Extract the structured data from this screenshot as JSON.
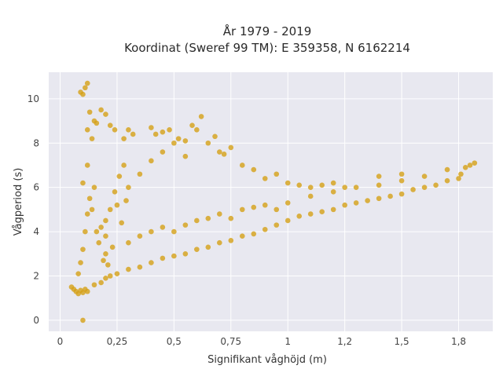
{
  "chart_data": {
    "type": "scatter",
    "title_line1": "År 1979 - 2019",
    "title_line2": "Koordinat (Sweref 99 TM): E 359358, N 6162214",
    "xlabel": "Signifikant våghöjd (m)",
    "ylabel": "Vågperiod (s)",
    "xlim": [
      -0.05,
      1.9
    ],
    "ylim": [
      -0.5,
      11.2
    ],
    "x_ticks": [
      {
        "value": 0,
        "label": "0"
      },
      {
        "value": 0.25,
        "label": "0,25"
      },
      {
        "value": 0.5,
        "label": "0,5"
      },
      {
        "value": 0.75,
        "label": "0,75"
      },
      {
        "value": 1,
        "label": "1"
      },
      {
        "value": 1.25,
        "label": "1,2"
      },
      {
        "value": 1.5,
        "label": "1,5"
      },
      {
        "value": 1.75,
        "label": "1,8"
      }
    ],
    "y_ticks": [
      {
        "value": 0,
        "label": "0"
      },
      {
        "value": 2,
        "label": "2"
      },
      {
        "value": 4,
        "label": "4"
      },
      {
        "value": 6,
        "label": "6"
      },
      {
        "value": 8,
        "label": "8"
      },
      {
        "value": 10,
        "label": "10"
      }
    ],
    "grid": true,
    "marker_color": "#D4A017",
    "background_color": "#E8E8F0",
    "points": [
      [
        0.05,
        1.5
      ],
      [
        0.06,
        1.4
      ],
      [
        0.07,
        1.3
      ],
      [
        0.08,
        1.2
      ],
      [
        0.09,
        1.35
      ],
      [
        0.1,
        1.25
      ],
      [
        0.11,
        1.4
      ],
      [
        0.12,
        1.3
      ],
      [
        0.08,
        2.1
      ],
      [
        0.09,
        2.6
      ],
      [
        0.1,
        3.2
      ],
      [
        0.11,
        4.0
      ],
      [
        0.12,
        4.8
      ],
      [
        0.13,
        5.5
      ],
      [
        0.1,
        6.2
      ],
      [
        0.12,
        7.0
      ],
      [
        0.1,
        10.2
      ],
      [
        0.11,
        10.5
      ],
      [
        0.12,
        10.7
      ],
      [
        0.09,
        10.3
      ],
      [
        0.13,
        9.4
      ],
      [
        0.12,
        8.6
      ],
      [
        0.15,
        9.0
      ],
      [
        0.14,
        8.2
      ],
      [
        0.1,
        0.0
      ],
      [
        0.15,
        1.6
      ],
      [
        0.18,
        1.7
      ],
      [
        0.2,
        1.9
      ],
      [
        0.22,
        2.0
      ],
      [
        0.25,
        2.1
      ],
      [
        0.3,
        2.3
      ],
      [
        0.35,
        2.4
      ],
      [
        0.4,
        2.6
      ],
      [
        0.45,
        2.8
      ],
      [
        0.5,
        2.9
      ],
      [
        0.55,
        3.0
      ],
      [
        0.6,
        3.2
      ],
      [
        0.65,
        3.3
      ],
      [
        0.7,
        3.5
      ],
      [
        0.75,
        3.6
      ],
      [
        0.8,
        3.8
      ],
      [
        0.85,
        3.9
      ],
      [
        0.9,
        4.1
      ],
      [
        0.95,
        4.3
      ],
      [
        1.0,
        4.5
      ],
      [
        1.05,
        4.7
      ],
      [
        1.1,
        4.8
      ],
      [
        1.15,
        4.9
      ],
      [
        1.2,
        5.0
      ],
      [
        1.25,
        5.2
      ],
      [
        1.3,
        5.3
      ],
      [
        1.35,
        5.4
      ],
      [
        1.4,
        5.5
      ],
      [
        1.45,
        5.6
      ],
      [
        1.5,
        5.7
      ],
      [
        1.55,
        5.9
      ],
      [
        1.6,
        6.0
      ],
      [
        1.65,
        6.1
      ],
      [
        1.7,
        6.3
      ],
      [
        1.75,
        6.4
      ],
      [
        1.8,
        7.0
      ],
      [
        1.78,
        6.9
      ],
      [
        1.82,
        7.1
      ],
      [
        1.76,
        6.6
      ],
      [
        0.2,
        4.5
      ],
      [
        0.25,
        5.2
      ],
      [
        0.3,
        6.0
      ],
      [
        0.35,
        6.6
      ],
      [
        0.4,
        7.2
      ],
      [
        0.45,
        7.6
      ],
      [
        0.5,
        8.0
      ],
      [
        0.55,
        7.4
      ],
      [
        0.6,
        8.6
      ],
      [
        0.62,
        9.2
      ],
      [
        0.58,
        8.8
      ],
      [
        0.65,
        8.0
      ],
      [
        0.7,
        7.6
      ],
      [
        0.75,
        7.8
      ],
      [
        0.8,
        7.0
      ],
      [
        0.85,
        6.8
      ],
      [
        0.9,
        6.4
      ],
      [
        0.95,
        6.6
      ],
      [
        1.0,
        6.2
      ],
      [
        1.05,
        6.1
      ],
      [
        1.1,
        6.0
      ],
      [
        1.15,
        6.1
      ],
      [
        1.2,
        6.2
      ],
      [
        1.25,
        6.0
      ],
      [
        0.3,
        8.6
      ],
      [
        0.28,
        8.2
      ],
      [
        0.32,
        8.4
      ],
      [
        0.22,
        8.8
      ],
      [
        0.18,
        9.5
      ],
      [
        0.2,
        9.3
      ],
      [
        0.16,
        8.9
      ],
      [
        0.24,
        8.6
      ],
      [
        0.4,
        8.7
      ],
      [
        0.42,
        8.4
      ],
      [
        0.45,
        8.5
      ],
      [
        0.48,
        8.6
      ],
      [
        0.52,
        8.2
      ],
      [
        0.55,
        8.1
      ],
      [
        0.68,
        8.3
      ],
      [
        0.72,
        7.5
      ],
      [
        0.3,
        3.5
      ],
      [
        0.35,
        3.8
      ],
      [
        0.4,
        4.0
      ],
      [
        0.45,
        4.2
      ],
      [
        0.5,
        4.0
      ],
      [
        0.55,
        4.3
      ],
      [
        0.6,
        4.5
      ],
      [
        0.65,
        4.6
      ],
      [
        0.7,
        4.8
      ],
      [
        0.75,
        4.6
      ],
      [
        0.8,
        5.0
      ],
      [
        0.85,
        5.1
      ],
      [
        0.9,
        5.2
      ],
      [
        0.95,
        5.0
      ],
      [
        1.0,
        5.3
      ],
      [
        1.1,
        5.6
      ],
      [
        1.2,
        5.8
      ],
      [
        1.3,
        6.0
      ],
      [
        1.4,
        6.1
      ],
      [
        1.5,
        6.3
      ],
      [
        1.6,
        6.5
      ],
      [
        1.7,
        6.8
      ],
      [
        1.5,
        6.6
      ],
      [
        1.4,
        6.5
      ],
      [
        0.2,
        3.0
      ],
      [
        0.2,
        3.8
      ],
      [
        0.18,
        4.2
      ],
      [
        0.22,
        5.0
      ],
      [
        0.24,
        5.8
      ],
      [
        0.26,
        6.5
      ],
      [
        0.28,
        7.0
      ],
      [
        0.15,
        6.0
      ],
      [
        0.14,
        5.0
      ],
      [
        0.16,
        4.0
      ],
      [
        0.17,
        3.5
      ],
      [
        0.19,
        2.7
      ],
      [
        0.21,
        2.5
      ],
      [
        0.23,
        3.3
      ],
      [
        0.27,
        4.4
      ],
      [
        0.29,
        5.4
      ]
    ]
  }
}
